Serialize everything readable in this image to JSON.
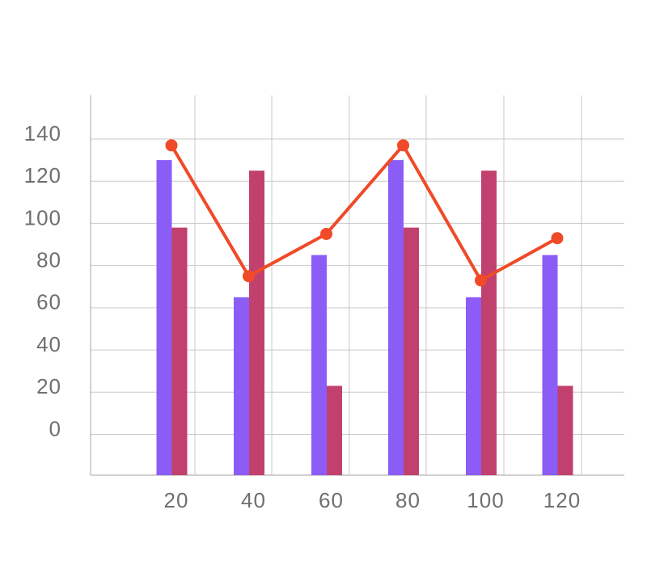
{
  "chart_data": {
    "type": "bar",
    "categories": [
      "20",
      "40",
      "60",
      "80",
      "100",
      "120"
    ],
    "y_ticks": [
      "0",
      "20",
      "40",
      "60",
      "80",
      "100",
      "120",
      "140"
    ],
    "ylim": [
      -20,
      160
    ],
    "grid": true,
    "series": [
      {
        "type": "bar",
        "values": [
          130,
          65,
          85,
          130,
          65,
          85
        ],
        "color": "#8B5CF6"
      },
      {
        "type": "bar",
        "values": [
          98,
          125,
          23,
          98,
          125,
          23
        ],
        "color": "#C2406E"
      },
      {
        "type": "line",
        "values": [
          137,
          75,
          95,
          137,
          73,
          93
        ],
        "color": "#F04A28"
      }
    ]
  }
}
